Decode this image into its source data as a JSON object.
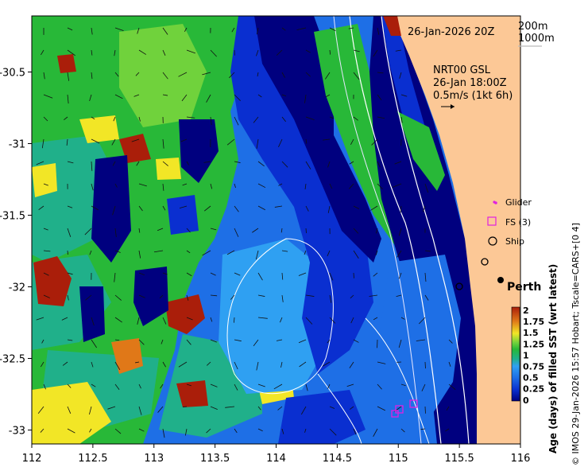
{
  "map": {
    "date_label": "26-Jan-2026 20Z",
    "contour_legend": [
      "200m",
      "1000m"
    ],
    "current_label": {
      "line1": "NRT00 GSL",
      "line2": "26-Jan 18:00Z",
      "line3": "0.5m/s (1kt 6h)"
    },
    "place_label": "Perth",
    "symbol_legend": [
      {
        "label": "Glider",
        "icon": "dot-icon",
        "color": "#e020e0"
      },
      {
        "label": "FS (3)",
        "icon": "square-icon",
        "color": "#e020e0"
      },
      {
        "label": "Ship",
        "icon": "circle-icon",
        "color": "#000000"
      }
    ],
    "x_ticks": [
      {
        "value": 112,
        "label": "112"
      },
      {
        "value": 112.5,
        "label": "112.5"
      },
      {
        "value": 113,
        "label": "113"
      },
      {
        "value": 113.5,
        "label": "113.5"
      },
      {
        "value": 114,
        "label": "114"
      },
      {
        "value": 114.5,
        "label": "114.5"
      },
      {
        "value": 115,
        "label": "115"
      },
      {
        "value": 115.5,
        "label": "115.5"
      },
      {
        "value": 116,
        "label": "116"
      }
    ],
    "y_ticks": [
      {
        "value": -30.5,
        "label": "-30.5"
      },
      {
        "value": -31,
        "label": "-31"
      },
      {
        "value": -31.5,
        "label": "-31.5"
      },
      {
        "value": -32,
        "label": "-32"
      },
      {
        "value": -32.5,
        "label": "-32.5"
      },
      {
        "value": -33,
        "label": "-33"
      }
    ],
    "colorbar": {
      "title": "Age (days) of filled SST (wrt latest)",
      "min": 0,
      "max": 2,
      "ticks": [
        "2",
        "1.75",
        "1.5",
        "1.25",
        "1",
        "0.75",
        "0.5",
        "0.25",
        "0"
      ]
    },
    "credit": "© IMOS 29-Jan-2026 15:57 Hobart; Tscale=CARS+[0 4]",
    "colors": {
      "land": "#fcc896",
      "dark_blue": "#00007f",
      "blue": "#0a2fd0",
      "mid_blue": "#1e6fe6",
      "light_blue": "#2fa0f2",
      "teal": "#20b08a",
      "green": "#28b838",
      "light_green": "#70d23c",
      "yellow": "#f2e626",
      "orange": "#e07818",
      "red_brown": "#aa1e0a"
    }
  }
}
